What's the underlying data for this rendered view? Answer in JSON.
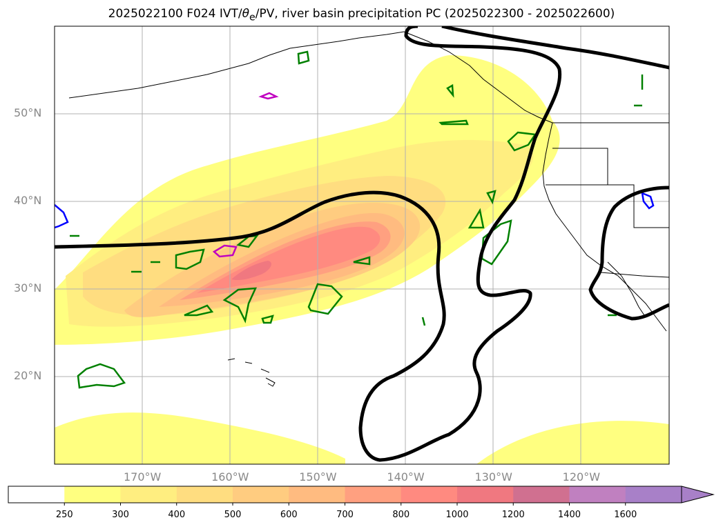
{
  "title": {
    "prefix": "2025022100 F024 IVT/",
    "theta": "θ",
    "theta_sub": "e",
    "suffix": "/PV, river basin precipitation PC (2025022300 - 2025022600)"
  },
  "map": {
    "projection": "plate-carree",
    "lon_range": [
      -180,
      -110
    ],
    "lat_range": [
      10,
      60
    ],
    "gridlines": true,
    "lat_ticks": [
      {
        "value": 50,
        "label": "50°N"
      },
      {
        "value": 40,
        "label": "40°N"
      },
      {
        "value": 30,
        "label": "30°N"
      },
      {
        "value": 20,
        "label": "20°N"
      }
    ],
    "lon_ticks": [
      {
        "value": -170,
        "label": "170°W"
      },
      {
        "value": -160,
        "label": "160°W"
      },
      {
        "value": -150,
        "label": "150°W"
      },
      {
        "value": -140,
        "label": "140°W"
      },
      {
        "value": -130,
        "label": "130°W"
      },
      {
        "value": -120,
        "label": "120°W"
      }
    ],
    "coastline_color": "#000000",
    "pv_contour_color": "#000000",
    "theta_e_contour_color": "#008000",
    "magenta_contour_color": "#c000c0",
    "blue_contour_color": "#0000ff"
  },
  "colorbar": {
    "extend": "max",
    "levels": [
      {
        "label": "250",
        "color": "#ffffff"
      },
      {
        "label": "300",
        "color": "#ffff80"
      },
      {
        "label": "400",
        "color": "#ffee80"
      },
      {
        "label": "500",
        "color": "#ffdd80"
      },
      {
        "label": "600",
        "color": "#ffcc80"
      },
      {
        "label": "700",
        "color": "#ffbb80"
      },
      {
        "label": "800",
        "color": "#ffa080"
      },
      {
        "label": "1000",
        "color": "#ff8a80"
      },
      {
        "label": "1200",
        "color": "#f07880"
      },
      {
        "label": "1400",
        "color": "#d07090"
      },
      {
        "label": "1600",
        "color": "#c080c0"
      },
      {
        "label": "",
        "color": "#a880c8"
      }
    ]
  }
}
